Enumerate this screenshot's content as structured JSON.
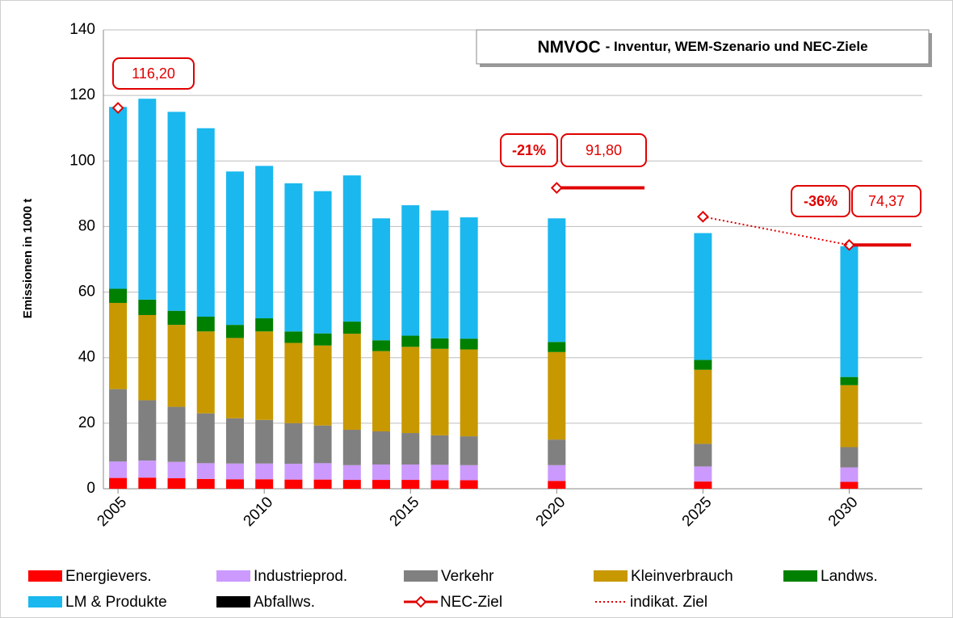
{
  "chart_data": {
    "type": "bar",
    "stacked": true,
    "title": "NMVOC",
    "subtitle": "- Inventur, WEM-Szenario und NEC-Ziele",
    "y_label": "Emissionen in 1000 t",
    "categories": [
      "2005",
      null,
      null,
      null,
      null,
      "2010",
      null,
      null,
      null,
      null,
      "2015",
      null,
      null,
      null,
      null,
      "2020",
      null,
      null,
      null,
      null,
      "2025",
      null,
      null,
      null,
      null,
      "2030",
      null,
      null
    ],
    "ylim": [
      0,
      140
    ],
    "yticks": [
      0,
      20,
      40,
      60,
      80,
      100,
      120,
      140
    ],
    "grid": true,
    "series": [
      {
        "name": "Energievers.",
        "color": "#ff0000",
        "values": [
          3.3,
          3.4,
          3.2,
          3.0,
          2.9,
          2.9,
          2.8,
          2.8,
          2.7,
          2.7,
          2.7,
          2.6,
          2.6,
          null,
          null,
          2.4,
          null,
          null,
          null,
          null,
          2.2,
          null,
          null,
          null,
          null,
          2.1,
          null,
          null
        ]
      },
      {
        "name": "Industrieprod.",
        "color": "#cc99ff",
        "values": [
          5.0,
          5.2,
          5.0,
          4.8,
          4.8,
          4.8,
          4.8,
          5.0,
          4.5,
          4.7,
          4.7,
          4.7,
          4.6,
          null,
          null,
          4.8,
          null,
          null,
          null,
          null,
          4.6,
          null,
          null,
          null,
          null,
          4.4,
          null,
          null
        ]
      },
      {
        "name": "Verkehr",
        "color": "#808080",
        "values": [
          22.1,
          18.4,
          16.8,
          15.2,
          13.8,
          13.3,
          12.4,
          11.5,
          10.8,
          10.1,
          9.6,
          9.0,
          8.8,
          null,
          null,
          7.8,
          null,
          null,
          null,
          null,
          6.9,
          null,
          null,
          null,
          null,
          6.2,
          null,
          null
        ]
      },
      {
        "name": "Kleinverbrauch",
        "color": "#c89800",
        "values": [
          26.3,
          26.0,
          25.0,
          25.0,
          24.5,
          27.0,
          24.5,
          24.4,
          29.3,
          24.5,
          26.3,
          26.4,
          26.5,
          null,
          null,
          26.7,
          null,
          null,
          null,
          null,
          22.6,
          null,
          null,
          null,
          null,
          18.9,
          null,
          null
        ]
      },
      {
        "name": "Landws.",
        "color": "#008000",
        "values": [
          4.3,
          4.7,
          4.3,
          4.5,
          4.0,
          4.0,
          3.5,
          3.7,
          3.7,
          3.3,
          3.4,
          3.2,
          3.3,
          null,
          null,
          3.1,
          null,
          null,
          null,
          null,
          3.0,
          null,
          null,
          null,
          null,
          2.5,
          null,
          null
        ]
      },
      {
        "name": "LM & Produkte",
        "color": "#1ab8ee",
        "values": [
          55.5,
          61.3,
          60.7,
          57.5,
          46.8,
          46.5,
          45.2,
          43.4,
          44.6,
          37.2,
          39.8,
          39.0,
          37.0,
          null,
          null,
          37.7,
          null,
          null,
          null,
          null,
          38.7,
          null,
          null,
          null,
          null,
          39.9,
          null,
          null
        ]
      },
      {
        "name": "Abfallws.",
        "color": "#000000",
        "values": [
          0,
          0,
          0,
          0,
          0,
          0,
          0,
          0,
          0,
          0,
          0,
          0,
          0,
          null,
          null,
          0,
          null,
          null,
          null,
          null,
          0,
          null,
          null,
          null,
          null,
          0,
          null,
          null
        ]
      },
      {
        "name": "NEC-Ziel",
        "type": "line",
        "color": "#e00000",
        "values": [
          116.2,
          null,
          null,
          null,
          null,
          null,
          null,
          null,
          null,
          null,
          null,
          null,
          null,
          null,
          null,
          91.8,
          null,
          null,
          null,
          null,
          null,
          null,
          null,
          null,
          null,
          74.37,
          null,
          null
        ]
      },
      {
        "name": "indikat. Ziel",
        "type": "line",
        "style": "dotted",
        "color": "#e00000",
        "values": [
          null,
          null,
          null,
          null,
          null,
          null,
          null,
          null,
          null,
          null,
          null,
          null,
          null,
          null,
          null,
          null,
          null,
          null,
          null,
          null,
          83,
          null,
          null,
          null,
          null,
          74.37,
          null,
          null
        ]
      }
    ],
    "annotations": [
      "116,20",
      "-21%",
      "91,80",
      "-36%",
      "74,37"
    ]
  }
}
